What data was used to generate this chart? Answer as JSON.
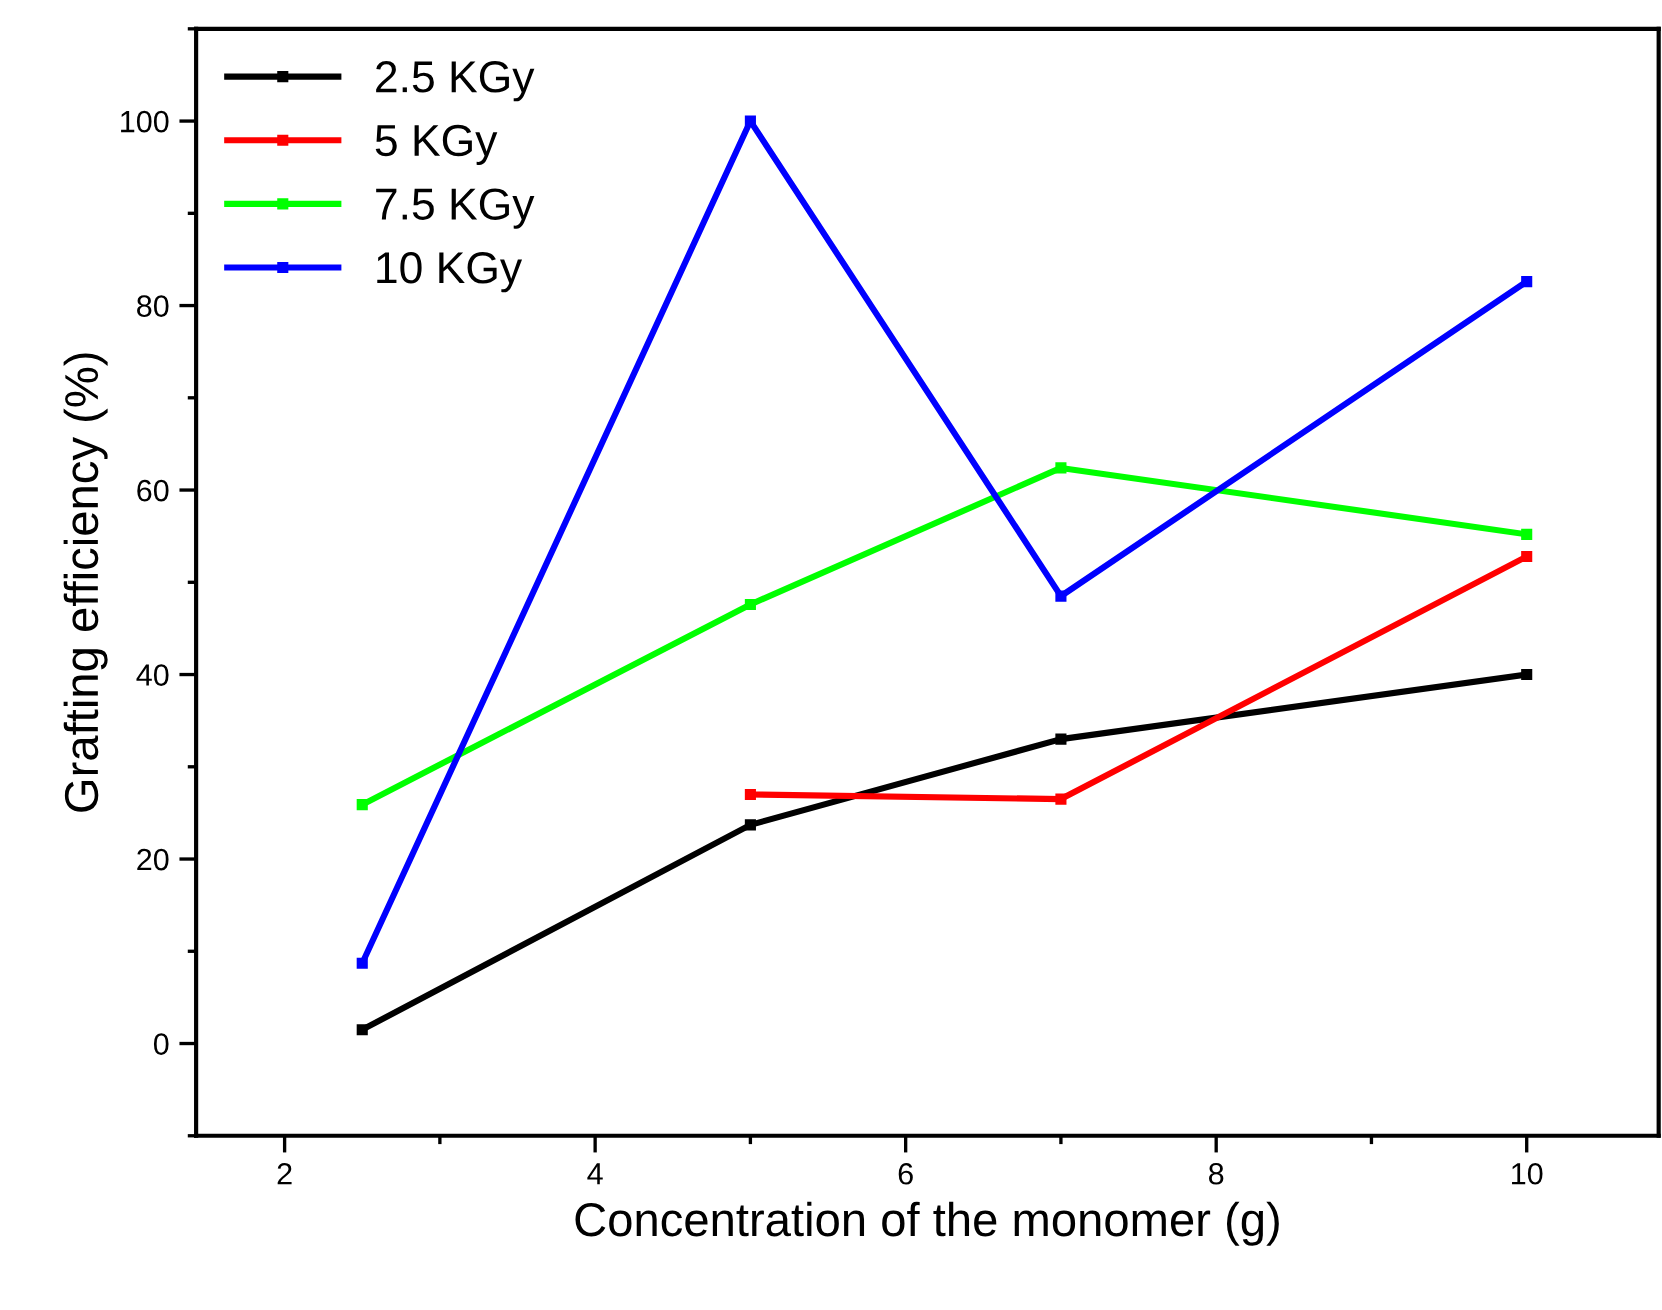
{
  "chart_data": {
    "type": "line",
    "xlabel": "Concentration of the monomer (g)",
    "ylabel": "Grafting efficiency (%)",
    "x": [
      2.5,
      5,
      7,
      10
    ],
    "series": [
      {
        "name": "2.5 KGy",
        "color": "#000000",
        "values": [
          1.5,
          23.7,
          33,
          40
        ]
      },
      {
        "name": "5 KGy",
        "color": "#ff0000",
        "values": [
          null,
          27,
          26.5,
          52.8
        ]
      },
      {
        "name": "7.5 KGy",
        "color": "#00ff00",
        "values": [
          25.9,
          47.6,
          62.4,
          55.2
        ]
      },
      {
        "name": "10 KGy",
        "color": "#0000ff",
        "values": [
          8.7,
          100,
          48.5,
          82.6
        ]
      }
    ],
    "xlim": [
      1.43,
      10.85
    ],
    "ylim": [
      -10,
      110
    ],
    "xticks": [
      2,
      4,
      6,
      8,
      10
    ],
    "yticks": [
      0,
      20,
      40,
      60,
      80,
      100
    ],
    "marker": "square",
    "line_style": "solid",
    "legend": "top left",
    "grid": false
  }
}
